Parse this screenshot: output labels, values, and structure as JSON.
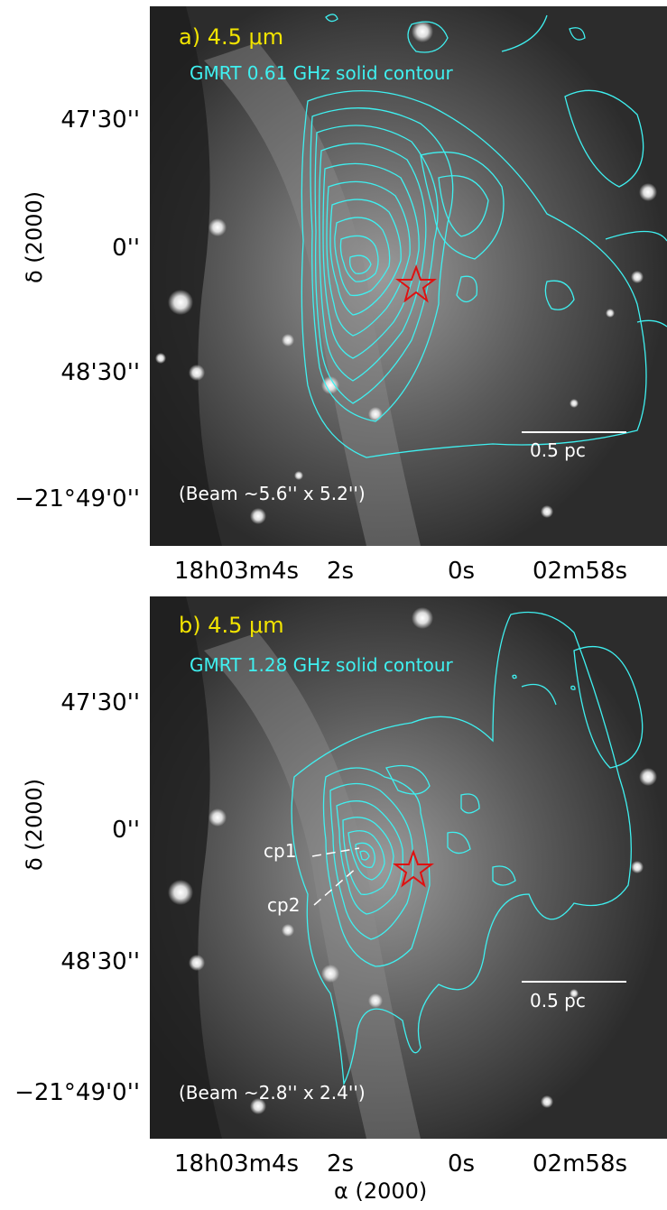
{
  "panels": [
    {
      "id": "a",
      "title": "a) 4.5 μm",
      "subtitle": "GMRT 0.61 GHz solid contour",
      "beam": "(Beam ~5.6'' x 5.2'')",
      "scalebar": "0.5 pc"
    },
    {
      "id": "b",
      "title": "b) 4.5 μm",
      "subtitle": "GMRT 1.28 GHz solid contour",
      "beam": "(Beam ~2.8'' x 2.4'')",
      "scalebar": "0.5 pc",
      "annotations": [
        "cp1",
        "cp2"
      ]
    }
  ],
  "axes": {
    "ylabel": "δ (2000)",
    "xlabel": "α (2000)",
    "yticks": [
      "47'30''",
      "0''",
      "48'30''",
      "−21°49'0''"
    ],
    "xticks": [
      "18h03m4s",
      "2s",
      "0s",
      "02m58s"
    ]
  },
  "colors": {
    "contour": "#3ff0f0",
    "title": "#f2e400",
    "star": "#e01010",
    "text": "#ffffff"
  }
}
